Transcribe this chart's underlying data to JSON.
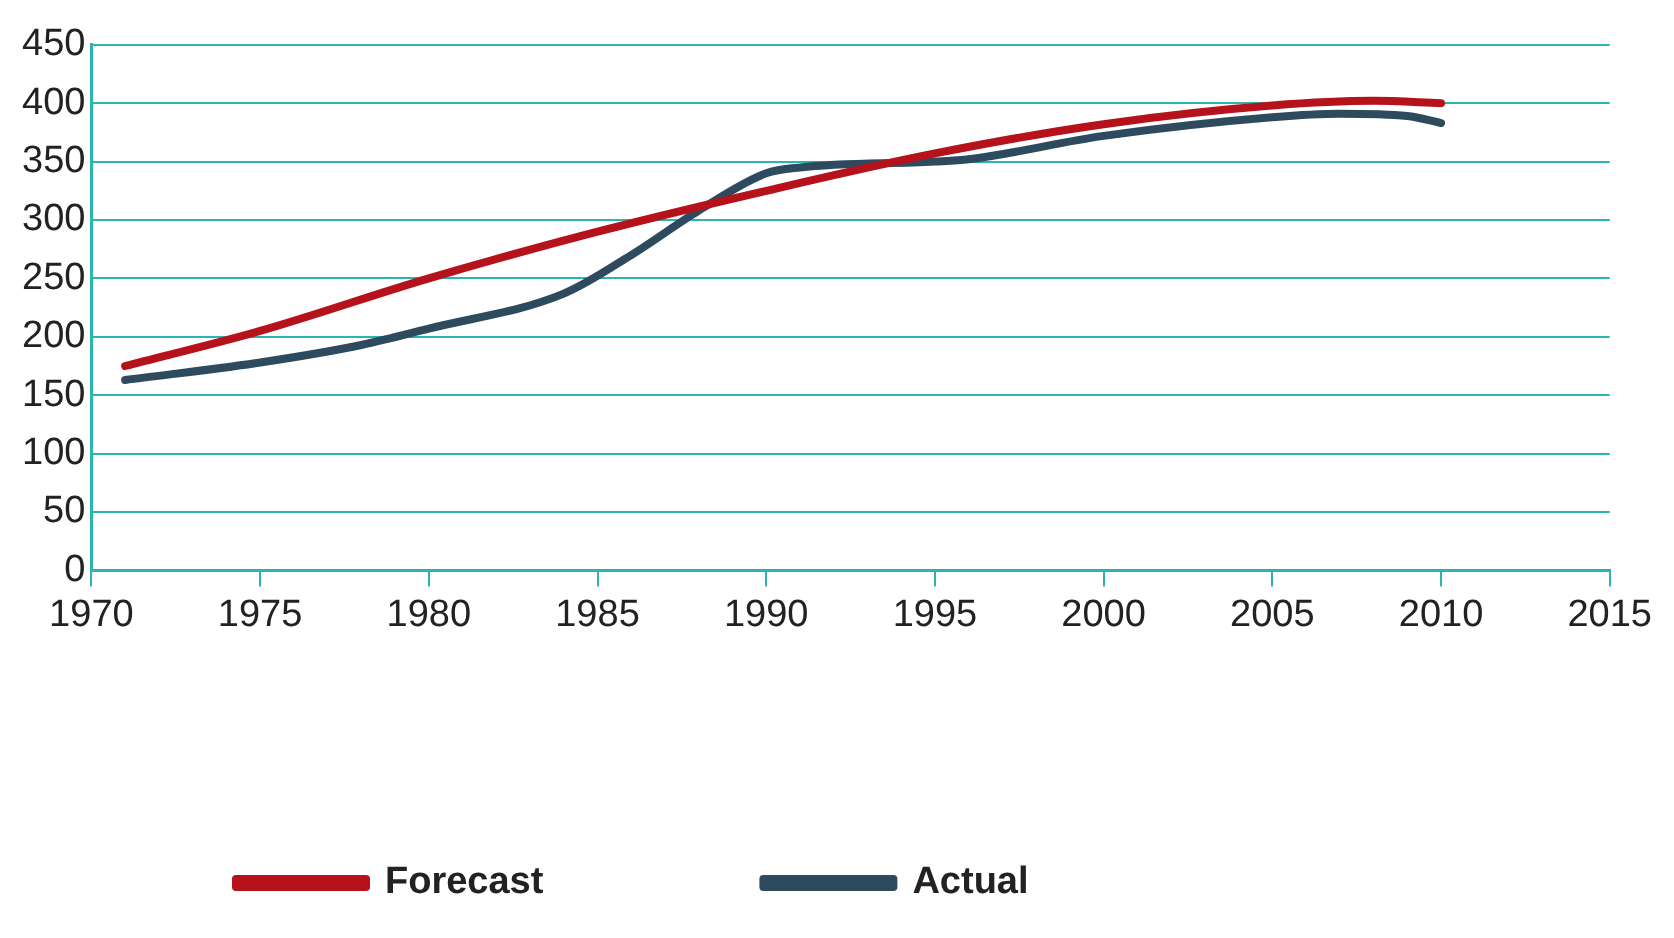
{
  "chart_data": {
    "type": "line",
    "xlim": [
      1970,
      2015
    ],
    "xticks": [
      1970,
      1975,
      1980,
      1985,
      1990,
      1995,
      2000,
      2005,
      2010,
      2015
    ],
    "ylim": [
      0,
      450
    ],
    "yticks": [
      0,
      50,
      100,
      150,
      200,
      250,
      300,
      350,
      400,
      450
    ],
    "grid": "y",
    "legend": "bottom",
    "marker": "none",
    "line_style": "solid",
    "series": [
      {
        "name": "Forecast",
        "color": "#b5121b",
        "x": [
          1971,
          1975,
          1980,
          1985,
          1990,
          1995,
          2000,
          2005,
          2008,
          2010
        ],
        "values": [
          175,
          205,
          250,
          290,
          325,
          357,
          382,
          398,
          402,
          400
        ]
      },
      {
        "name": "Actual",
        "color": "#2e4a5f",
        "x": [
          1971,
          1975,
          1978,
          1980,
          1984,
          1986,
          1988,
          1990,
          1991,
          1995,
          1996,
          2000,
          2005,
          2007,
          2009,
          2010
        ],
        "values": [
          163,
          178,
          193,
          207,
          237,
          270,
          308,
          340,
          345,
          350,
          352,
          372,
          388,
          391,
          389,
          383
        ]
      }
    ]
  }
}
